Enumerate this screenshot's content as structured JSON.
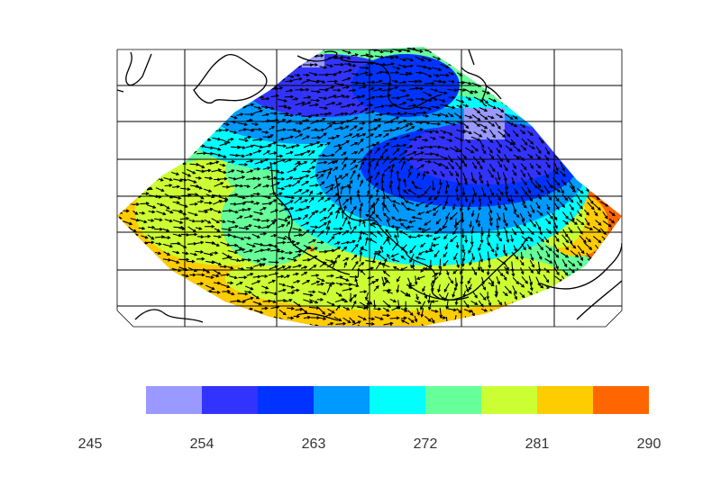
{
  "map": {
    "field": "temperature with wind vectors",
    "colorbar": {
      "ticks": [
        "245",
        "254",
        "263",
        "272",
        "281",
        "290"
      ],
      "tick_values": [
        245,
        254,
        263,
        272,
        281,
        290
      ],
      "range": [
        245,
        290
      ],
      "colors": [
        "#9999ff",
        "#3333ff",
        "#0033ff",
        "#0099ff",
        "#00ffff",
        "#66ff99",
        "#ccff33",
        "#ffcc00",
        "#ff6600"
      ]
    },
    "gridlines": true,
    "coastlines": true,
    "vectors": "wind arrows (black)"
  }
}
